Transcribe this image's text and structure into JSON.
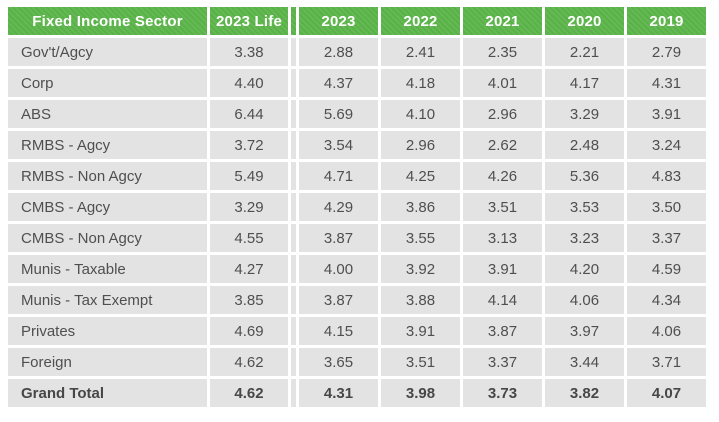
{
  "colors": {
    "header_green": "#5bb549",
    "row_gray": "#e3e3e3",
    "header_text": "#ffffff",
    "body_text": "#4f4f4f"
  },
  "chart_data": {
    "type": "table",
    "columns": [
      "Fixed Income Sector",
      "2023 Life",
      "2023",
      "2022",
      "2021",
      "2020",
      "2019"
    ],
    "rows": [
      {
        "sector": "Gov't/Agcy",
        "values": [
          3.38,
          2.88,
          2.41,
          2.35,
          2.21,
          2.79
        ],
        "is_total": false
      },
      {
        "sector": "Corp",
        "values": [
          4.4,
          4.37,
          4.18,
          4.01,
          4.17,
          4.31
        ],
        "is_total": false
      },
      {
        "sector": "ABS",
        "values": [
          6.44,
          5.69,
          4.1,
          2.96,
          3.29,
          3.91
        ],
        "is_total": false
      },
      {
        "sector": "RMBS - Agcy",
        "values": [
          3.72,
          3.54,
          2.96,
          2.62,
          2.48,
          3.24
        ],
        "is_total": false
      },
      {
        "sector": "RMBS - Non Agcy",
        "values": [
          5.49,
          4.71,
          4.25,
          4.26,
          5.36,
          4.83
        ],
        "is_total": false
      },
      {
        "sector": "CMBS - Agcy",
        "values": [
          3.29,
          4.29,
          3.86,
          3.51,
          3.53,
          3.5
        ],
        "is_total": false
      },
      {
        "sector": "CMBS - Non Agcy",
        "values": [
          4.55,
          3.87,
          3.55,
          3.13,
          3.23,
          3.37
        ],
        "is_total": false
      },
      {
        "sector": "Munis - Taxable",
        "values": [
          4.27,
          4.0,
          3.92,
          3.91,
          4.2,
          4.59
        ],
        "is_total": false
      },
      {
        "sector": "Munis - Tax Exempt",
        "values": [
          3.85,
          3.87,
          3.88,
          4.14,
          4.06,
          4.34
        ],
        "is_total": false
      },
      {
        "sector": "Privates",
        "values": [
          4.69,
          4.15,
          3.91,
          3.87,
          3.97,
          4.06
        ],
        "is_total": false
      },
      {
        "sector": "Foreign",
        "values": [
          4.62,
          3.65,
          3.51,
          3.37,
          3.44,
          3.71
        ],
        "is_total": false
      },
      {
        "sector": "Grand Total",
        "values": [
          4.62,
          4.31,
          3.98,
          3.73,
          3.82,
          4.07
        ],
        "is_total": true
      }
    ]
  }
}
